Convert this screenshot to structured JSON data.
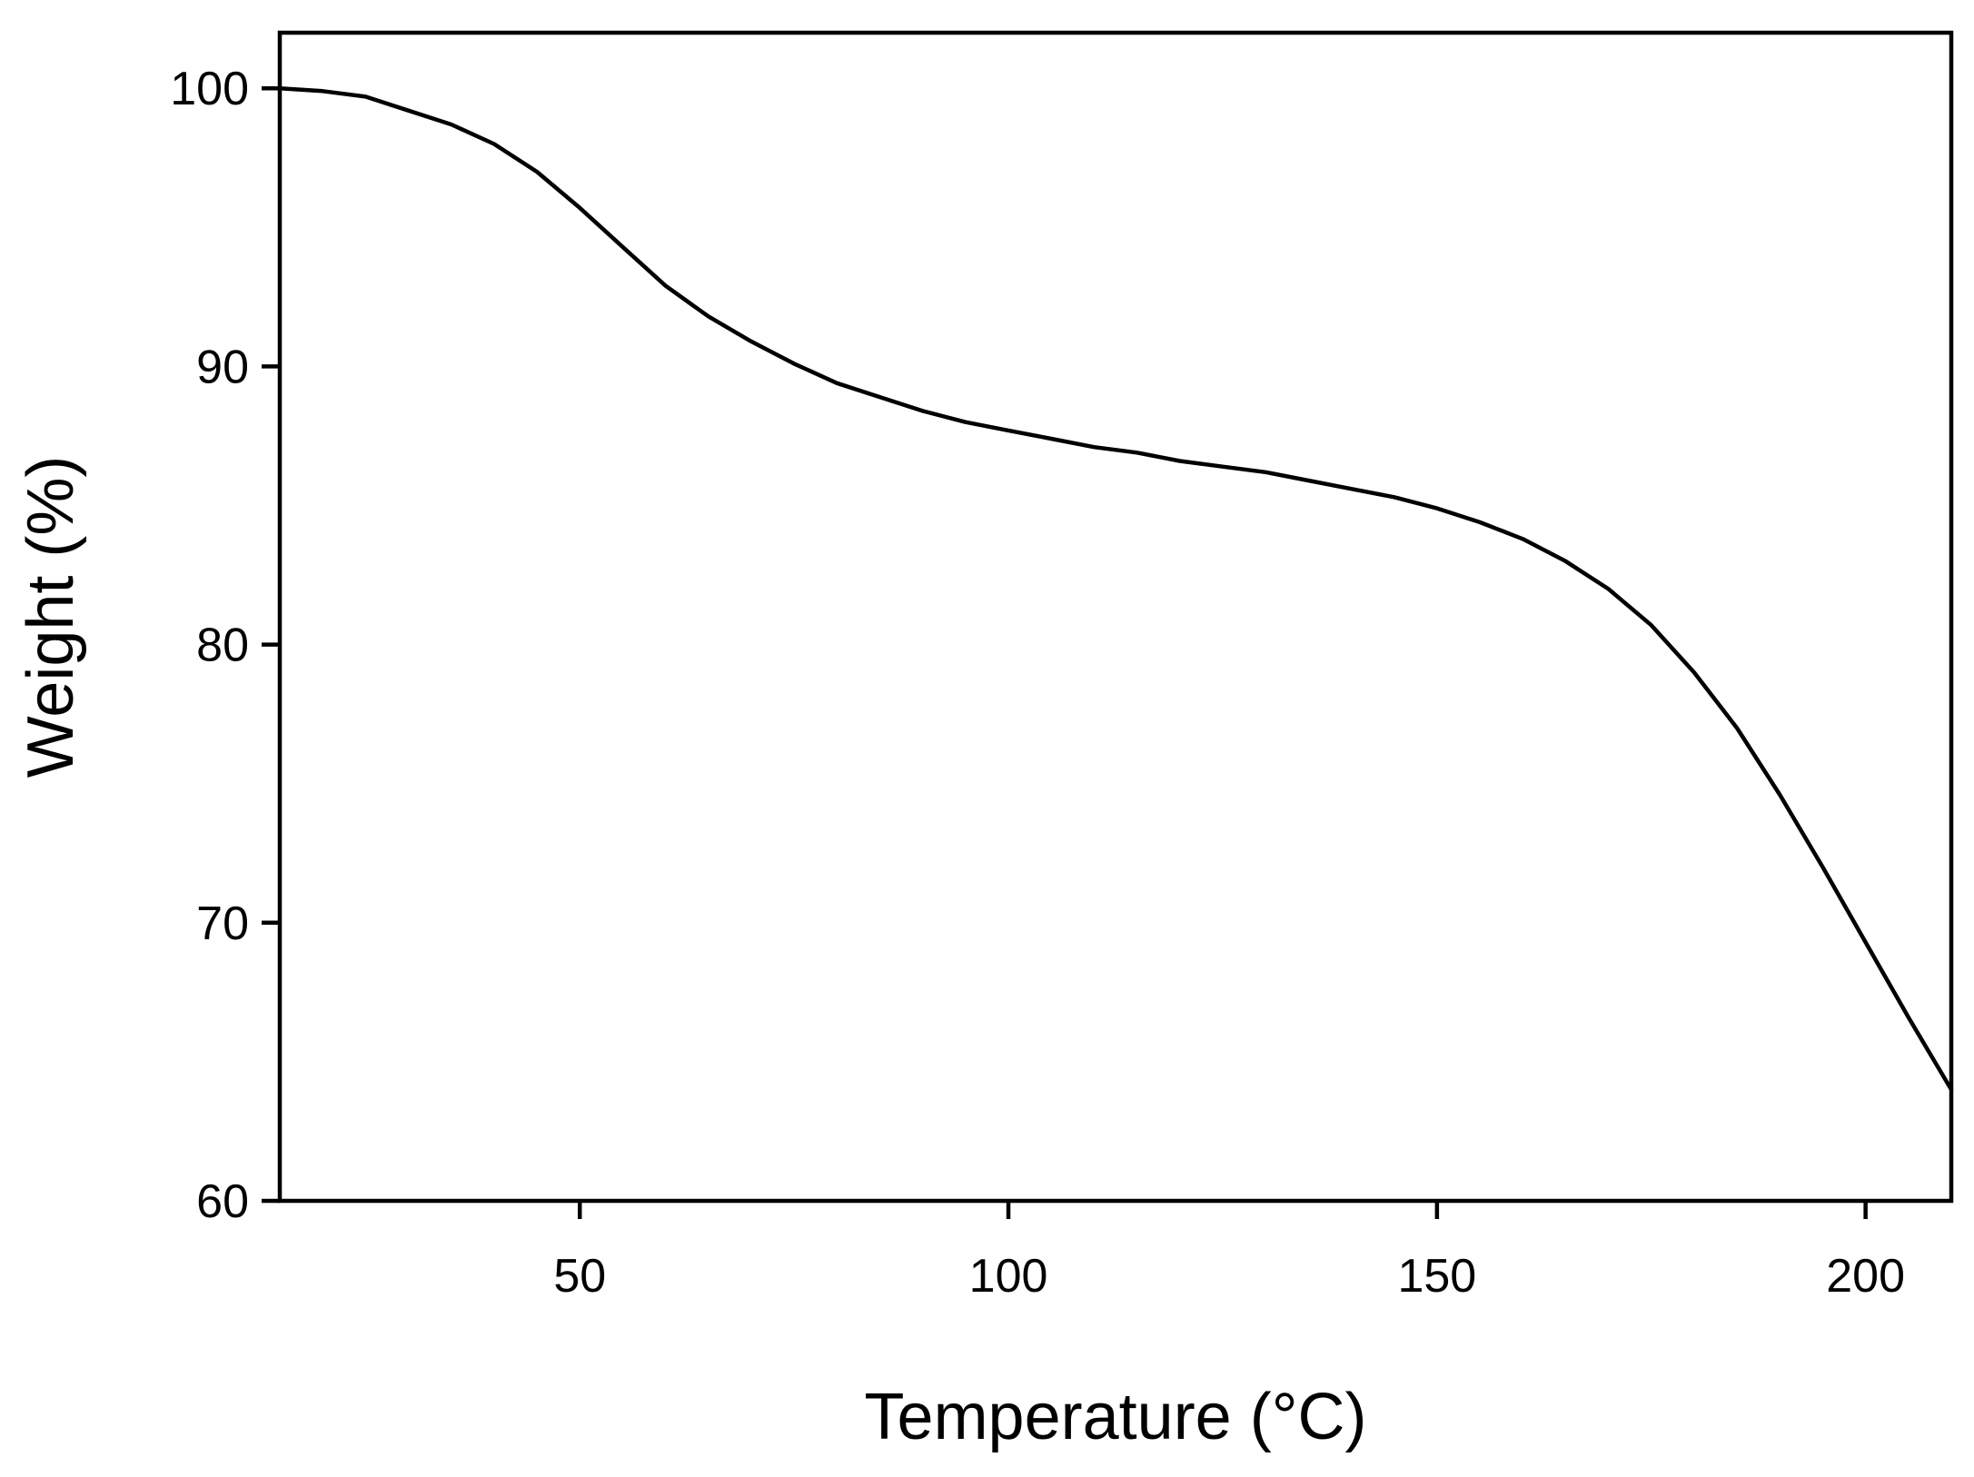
{
  "chart_data": {
    "type": "line",
    "title": "",
    "xlabel": "Temperature (°C)",
    "ylabel": "Weight (%)",
    "xlim": [
      15,
      210
    ],
    "ylim": [
      60,
      102
    ],
    "xticks": [
      50,
      100,
      150,
      200
    ],
    "yticks": [
      60,
      70,
      80,
      90,
      100
    ],
    "xtick_labels": [
      "50",
      "100",
      "150",
      "200"
    ],
    "ytick_labels": [
      "60",
      "70",
      "80",
      "90",
      "100"
    ],
    "grid": false,
    "series": [
      {
        "color": "#000000",
        "x": [
          15,
          20,
          25,
          30,
          35,
          40,
          45,
          50,
          55,
          60,
          65,
          70,
          75,
          80,
          85,
          90,
          95,
          100,
          105,
          110,
          115,
          120,
          125,
          130,
          135,
          140,
          145,
          150,
          155,
          160,
          165,
          170,
          175,
          180,
          185,
          190,
          195,
          200,
          205,
          210
        ],
        "y": [
          100.0,
          99.9,
          99.7,
          99.2,
          98.7,
          98.0,
          97.0,
          95.7,
          94.3,
          92.9,
          91.8,
          90.9,
          90.1,
          89.4,
          88.9,
          88.4,
          88.0,
          87.7,
          87.4,
          87.1,
          86.9,
          86.6,
          86.4,
          86.2,
          85.9,
          85.6,
          85.3,
          84.9,
          84.4,
          83.8,
          83.0,
          82.0,
          80.7,
          79.0,
          77.0,
          74.6,
          72.0,
          69.3,
          66.6,
          64.0
        ]
      }
    ]
  }
}
